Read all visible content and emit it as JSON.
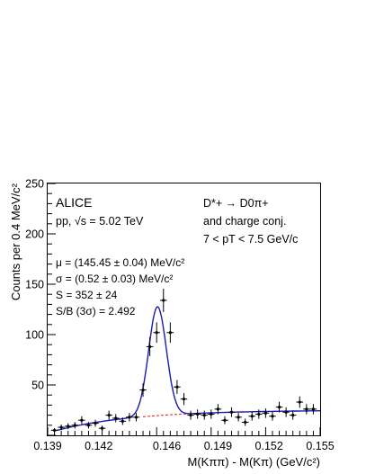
{
  "chart_data": {
    "type": "scatter",
    "xlabel": "M(Kππ) - M(Kπ) (GeV/c²)",
    "ylabel": "Counts per 0.4 MeV/c²",
    "xlim": [
      0.139,
      0.155
    ],
    "ylim": [
      0,
      250
    ],
    "x_ticks": [
      "0.139",
      "0.142",
      "0.146",
      "0.149",
      "0.152",
      "0.155"
    ],
    "y_ticks": [
      "50",
      "100",
      "150",
      "200",
      "250"
    ],
    "annotations": {
      "experiment": "ALICE",
      "system": "pp, √s = 5.02 TeV",
      "decay": "D*+ → D0π+",
      "conjugate": "and charge conj.",
      "pt_range": "7 < pT < 7.5 GeV/c",
      "mu": "μ = (145.45 ± 0.04) MeV/c²",
      "sigma": "σ = (0.52 ± 0.03) MeV/c²",
      "signal": "S = 352 ± 24",
      "sb": "S/B (3σ) = 2.492"
    },
    "series": [
      {
        "kind": "data",
        "x": [
          0.1394,
          0.1398,
          0.1402,
          0.1406,
          0.141,
          0.1414,
          0.1418,
          0.1422,
          0.1426,
          0.143,
          0.1434,
          0.1438,
          0.1442,
          0.1446,
          0.145,
          0.1454,
          0.1458,
          0.1462,
          0.1466,
          0.147,
          0.1474,
          0.1478,
          0.1482,
          0.1486,
          0.149,
          0.1494,
          0.1498,
          0.1502,
          0.1506,
          0.151,
          0.1514,
          0.1518,
          0.1522,
          0.1526,
          0.153,
          0.1534,
          0.1538,
          0.1542,
          0.1546
        ],
        "y": [
          5,
          8,
          9,
          10,
          15,
          10,
          12,
          7,
          20,
          17,
          14,
          18,
          18,
          45,
          88,
          102,
          134,
          102,
          48,
          36,
          20,
          21,
          20,
          21,
          26,
          15,
          23,
          18,
          13,
          19,
          21,
          22,
          19,
          28,
          23,
          20,
          33,
          26,
          26
        ],
        "yerr": [
          2.2,
          2.8,
          3,
          3.2,
          3.9,
          3.2,
          3.5,
          2.6,
          4.5,
          4.1,
          3.7,
          4.2,
          4.2,
          6.7,
          9.4,
          10.1,
          11.6,
          10.1,
          6.9,
          6,
          4.5,
          4.6,
          4.5,
          4.6,
          5.1,
          3.9,
          4.8,
          4.2,
          3.6,
          4.4,
          4.6,
          4.7,
          4.4,
          5.3,
          4.8,
          4.5,
          5.7,
          5.1,
          5.1
        ],
        "color": "#000000"
      },
      {
        "kind": "fit",
        "name": "",
        "color": "#1a1ab0",
        "mu": 0.14545,
        "sigma": 0.00052,
        "amplitude": 108,
        "background": "rising threshold shape, ~17 counts at 0.1446, ~24 at 0.155"
      }
    ],
    "colors": {
      "signal_fit": "#1a1ab0",
      "background_fit": "#e31a1c",
      "points": "#000000"
    }
  }
}
